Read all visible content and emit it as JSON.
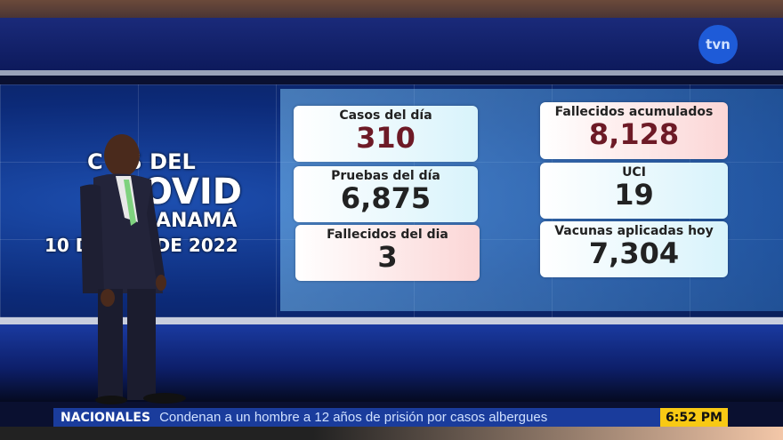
{
  "broadcaster_logo": "tvn",
  "wall_title": {
    "line1": "C   AS DEL",
    "line2": "OVID",
    "line3": "ANAMÁ",
    "line4": "10 D     ZO DE 2022"
  },
  "stats": [
    {
      "label": "Casos del día",
      "value": "310"
    },
    {
      "label": "Pruebas del día",
      "value": "6,875"
    },
    {
      "label": "Fallecidos del dia",
      "value": "3"
    },
    {
      "label": "Fallecidos acumulados",
      "value": "8,128"
    },
    {
      "label": "UCI",
      "value": "19"
    },
    {
      "label": "Vacunas aplicadas hoy",
      "value": "7,304"
    }
  ],
  "ticker": {
    "section": "NACIONALES",
    "headline": "Condenan a un hombre a 12 años de prisión por casos albergues",
    "time": "6:52 PM"
  },
  "colors": {
    "ticker": "#1a3c9c",
    "clock": "#f8c914",
    "wall": "#0c2a78"
  }
}
